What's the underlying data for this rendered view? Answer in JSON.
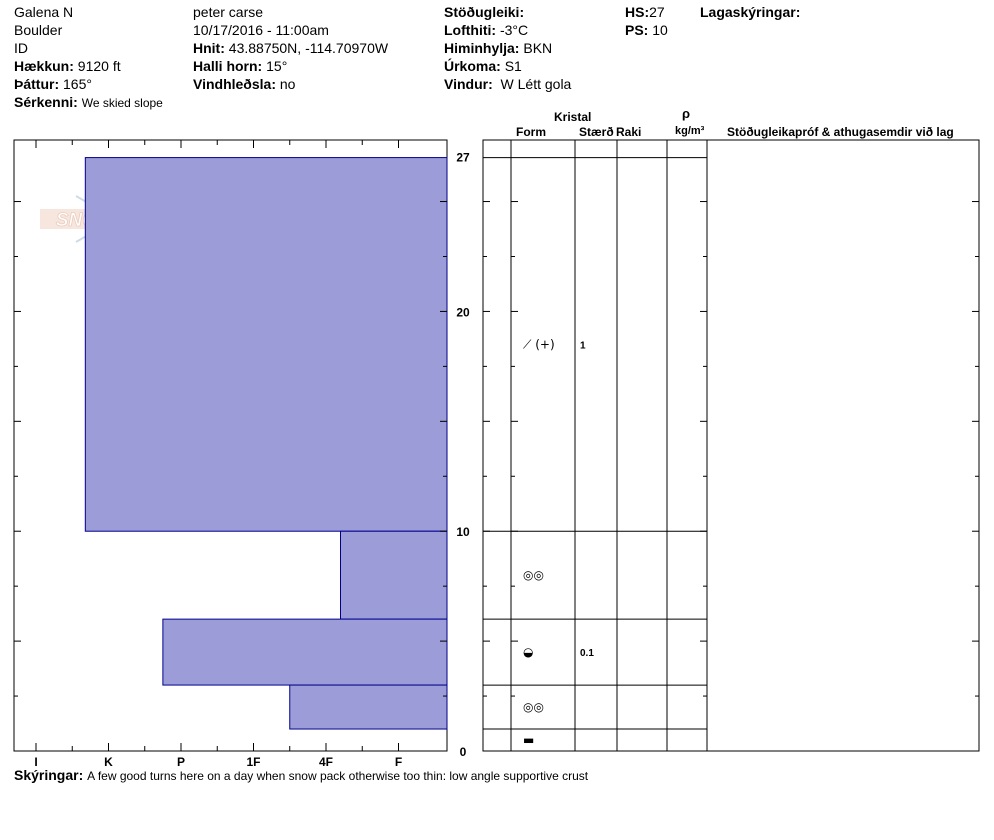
{
  "header": {
    "col1": {
      "location": "Galena N",
      "range": "Boulder",
      "state": "ID",
      "elevation_label": "Hækkun:",
      "elevation": "9120 ft",
      "aspect_label": "Þáttur:",
      "aspect": "165°",
      "features_label": "Sérkenni:",
      "features": "We skied slope"
    },
    "col2": {
      "observer": "peter carse",
      "datetime": "10/17/2016 - 11:00am",
      "coords_label": "Hnit:",
      "coords": "43.88750N, -114.70970W",
      "slope_label": "Halli horn:",
      "slope": "15°",
      "wind_loading_label": "Vindhleðsla:",
      "wind_loading": "no"
    },
    "col3": {
      "stability_label": "Stöðugleiki:",
      "air_temp_label": "Lofthiti:",
      "air_temp": "-3°C",
      "sky_label": "Himinhylja:",
      "sky": "BKN",
      "precip_label": "Úrkoma:",
      "precip": "S1",
      "wind_label": "Vindur:",
      "wind": "W Létt gola"
    },
    "col4": {
      "hs_label": "HS:",
      "hs": "27",
      "ps_label": "PS:",
      "ps": "10"
    },
    "col5": {
      "layer_notes_label": "Lagaskýringar:"
    }
  },
  "watermark": {
    "text": "SNOW PILOT"
  },
  "table_headers": {
    "crystal": "Kristal",
    "form": "Form",
    "size": "Stærð",
    "moisture": "Raki",
    "rho": "ρ",
    "density_unit": "kg/m³",
    "tests": "Stöðugleikapróf & athugasemdir við lag"
  },
  "chart_data": {
    "type": "bar",
    "title": "",
    "xlabel": "",
    "ylabel": "",
    "hardness_scale": [
      "I",
      "K",
      "P",
      "1F",
      "4F",
      "F"
    ],
    "depth_ticks": [
      0,
      10,
      20,
      27
    ],
    "ylim": [
      0,
      27.8
    ],
    "layers": [
      {
        "top": 27,
        "bottom": 10,
        "hardness": 0.68,
        "form": "⟋ (+)",
        "size": "1"
      },
      {
        "top": 10,
        "bottom": 6,
        "hardness": 4.2,
        "form": "◎◎",
        "size": ""
      },
      {
        "top": 6,
        "bottom": 3,
        "hardness": 1.75,
        "form": "◒",
        "size": "0.1"
      },
      {
        "top": 3,
        "bottom": 1,
        "hardness": 3.5,
        "form": "◎◎",
        "size": ""
      },
      {
        "top": 1,
        "bottom": 0,
        "hardness": 5.95,
        "form": "▬",
        "size": ""
      }
    ],
    "bar_color": "#9c9cd9",
    "bar_edge_color": "#00008b"
  },
  "footer": {
    "comments_label": "Skýringar:",
    "comments": "A few good turns here on a day when snow pack otherwise too thin: low angle supportive crust"
  }
}
